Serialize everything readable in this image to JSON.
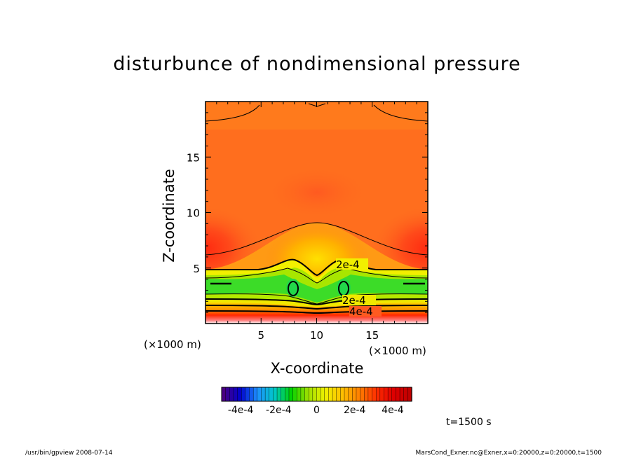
{
  "chart_data": {
    "type": "heatmap",
    "title": "disturbunce of nondimensional pressure",
    "xlabel": "X-coordinate",
    "ylabel": "Z-coordinate",
    "x_unit": "(×1000 m)",
    "z_unit": "(×1000 m)",
    "xlim": [
      0,
      20
    ],
    "ylim": [
      0,
      20
    ],
    "x_ticks": [
      5,
      10,
      15
    ],
    "y_ticks": [
      5,
      10,
      15
    ],
    "contour_labels": [
      "2e-4",
      "2e-4",
      "4e-4"
    ],
    "colorbar": {
      "range": [
        -0.0005,
        0.0005
      ],
      "tick_labels": [
        "-4e-4",
        "-2e-4",
        "0",
        "2e-4",
        "4e-4"
      ],
      "colors": [
        "#4b0082",
        "#0000cd",
        "#1e90ff",
        "#00c8c8",
        "#00d200",
        "#a0e000",
        "#f0f000",
        "#ffc000",
        "#ff8000",
        "#ff3000",
        "#e00000",
        "#c00000"
      ]
    },
    "field_description_levels": {
      "upper_field": 0.00035,
      "lower_band": 0.0001
    }
  },
  "annotations": {
    "time": "t=1500 s",
    "footer_left": "/usr/bin/gpview   2008-07-14",
    "footer_right": "MarsCond_Exner.nc@Exner,x=0:20000,z=0:20000,t=1500"
  }
}
